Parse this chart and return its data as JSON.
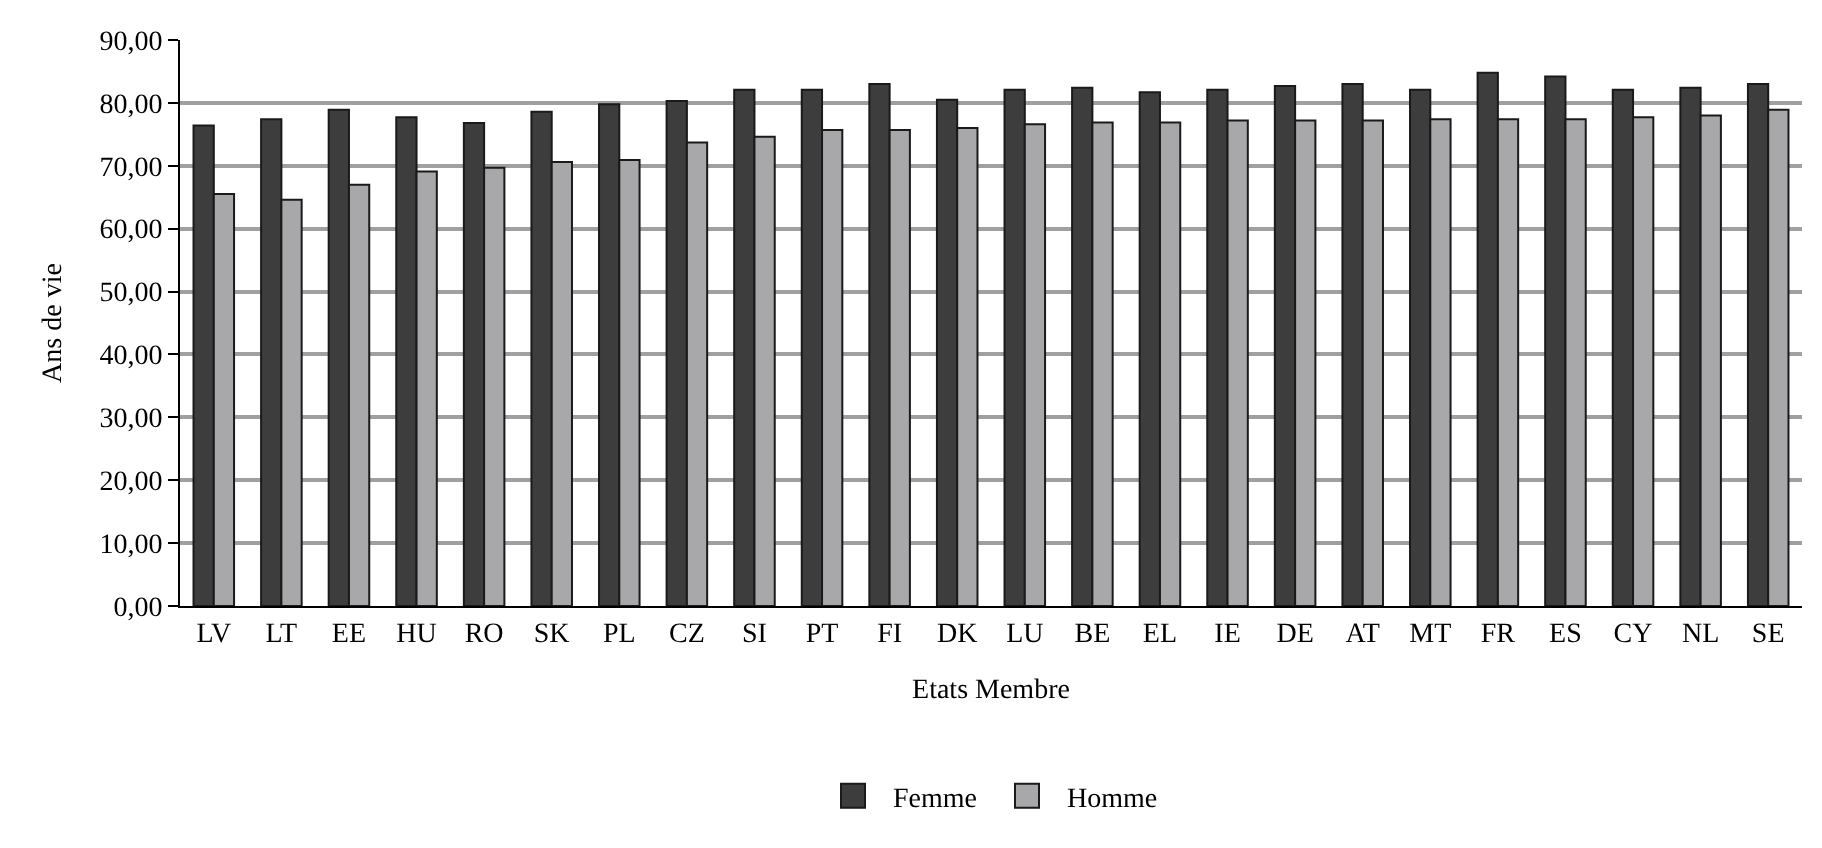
{
  "chart_data": {
    "type": "bar",
    "xlabel": "Etats Membre",
    "ylabel": "Ans de vie",
    "categories": [
      "LV",
      "LT",
      "EE",
      "HU",
      "RO",
      "SK",
      "PL",
      "CZ",
      "SI",
      "PT",
      "FI",
      "DK",
      "LU",
      "BE",
      "EL",
      "IE",
      "DE",
      "AT",
      "MT",
      "FR",
      "ES",
      "CY",
      "NL",
      "SE"
    ],
    "series": [
      {
        "name": "Femme",
        "color": "#3d3d3d",
        "values": [
          76.4,
          77.4,
          78.9,
          77.7,
          76.8,
          78.6,
          79.8,
          80.3,
          82.1,
          82.1,
          83.0,
          80.5,
          82.1,
          82.4,
          81.7,
          82.1,
          82.7,
          83.0,
          82.1,
          84.8,
          84.2,
          82.1,
          82.4,
          83.0
        ]
      },
      {
        "name": "Homme",
        "color": "#a8a8aa",
        "values": [
          65.5,
          64.6,
          67.0,
          69.1,
          69.7,
          70.6,
          70.9,
          73.7,
          74.6,
          75.7,
          75.7,
          76.0,
          76.6,
          76.9,
          76.9,
          77.2,
          77.2,
          77.2,
          77.4,
          77.4,
          77.4,
          77.7,
          78.0,
          78.9
        ]
      }
    ],
    "ylim": [
      0,
      90
    ],
    "yticks": [
      {
        "value": 0,
        "label": "0,00"
      },
      {
        "value": 10,
        "label": "10,00"
      },
      {
        "value": 20,
        "label": "20,00"
      },
      {
        "value": 30,
        "label": "30,00"
      },
      {
        "value": 40,
        "label": "40,00"
      },
      {
        "value": 50,
        "label": "50,00"
      },
      {
        "value": 60,
        "label": "60,00"
      },
      {
        "value": 70,
        "label": "70,00"
      },
      {
        "value": 80,
        "label": "80,00"
      },
      {
        "value": 90,
        "label": "90,00"
      }
    ],
    "grid": "y",
    "legend": "bottom"
  }
}
